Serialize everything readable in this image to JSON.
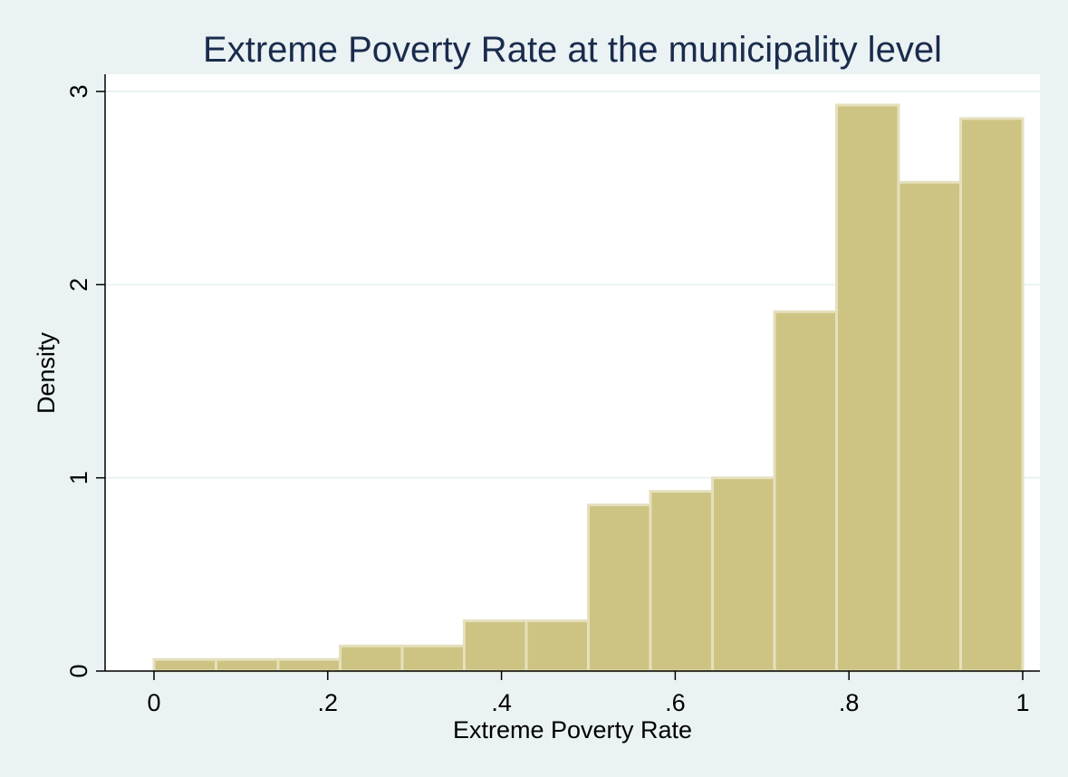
{
  "chart_data": {
    "type": "bar",
    "title": "Extreme Poverty Rate at the municipality level",
    "xlabel": "Extreme Poverty Rate",
    "ylabel": "Density",
    "xlim": [
      0,
      1
    ],
    "ylim": [
      0,
      3
    ],
    "x_ticks": [
      {
        "value": 0,
        "label": "0"
      },
      {
        "value": 0.2,
        "label": ".2"
      },
      {
        "value": 0.4,
        "label": ".4"
      },
      {
        "value": 0.6,
        "label": ".6"
      },
      {
        "value": 0.8,
        "label": ".8"
      },
      {
        "value": 1,
        "label": "1"
      }
    ],
    "y_ticks": [
      {
        "value": 0,
        "label": "0"
      },
      {
        "value": 1,
        "label": "1"
      },
      {
        "value": 2,
        "label": "2"
      },
      {
        "value": 3,
        "label": "3"
      }
    ],
    "bin_edges": [
      0,
      0.0714,
      0.1429,
      0.2143,
      0.2857,
      0.3571,
      0.4286,
      0.5,
      0.5714,
      0.6429,
      0.7143,
      0.7857,
      0.8571,
      0.9286,
      1.0
    ],
    "values": [
      0.06,
      0.06,
      0.06,
      0.13,
      0.13,
      0.26,
      0.26,
      0.86,
      0.93,
      1.0,
      1.86,
      2.93,
      2.53,
      2.86
    ],
    "grid": true,
    "colors": {
      "bar_fill": "#cdc483",
      "bar_edge": "#e5e0bd",
      "background": "#eaf2f3",
      "plot_background": "#ffffff",
      "grid": "#eaf2f3",
      "title": "#1a2b4c"
    }
  }
}
